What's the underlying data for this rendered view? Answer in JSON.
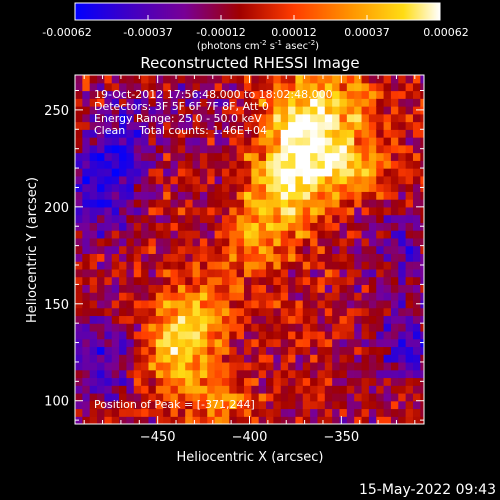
{
  "colorbar": {
    "ticks": [
      "-0.00062",
      "-0.00037",
      "-0.00012",
      "0.00012",
      "0.00037",
      "0.00062"
    ],
    "unit_prefix": "(photons cm",
    "unit_exp1": "-2",
    "unit_mid": " s",
    "unit_exp2": "-1",
    "unit_mid2": " asec",
    "unit_exp3": "-2",
    "unit_suffix": ")"
  },
  "annotations": {
    "line1": "19-Oct-2012 17:56:48.000 to 18:02:48.000",
    "line2": "Detectors: 3F 5F 6F 7F 8F, Att 0",
    "line3": "Energy Range: 25.0 - 50.0 keV",
    "line4": "Clean    Total counts: 1.46E+04",
    "peak": "Position of Peak = [-371,244]"
  },
  "footer": {
    "date": "15-May-2022 09:43"
  },
  "chart_data": {
    "type": "heatmap",
    "title": "Reconstructed RHESSI Image",
    "xlabel": "Heliocentric X (arcsec)",
    "ylabel": "Heliocentric Y (arcsec)",
    "xlim": [
      -495,
      -305
    ],
    "ylim": [
      88,
      268
    ],
    "xticks": [
      -450,
      -400,
      -350
    ],
    "yticks": [
      100,
      150,
      200,
      250
    ],
    "color_range": [
      -0.00062,
      0.00062
    ],
    "peak_position": [
      -371,
      244
    ],
    "pixel_size": 4,
    "colormap": [
      "#0000ff",
      "#3c00c8",
      "#780096",
      "#a00000",
      "#ff3c00",
      "#ff9600",
      "#ffdc14",
      "#ffffff"
    ],
    "sources": [
      {
        "x": -371,
        "y": 244,
        "flux": 0.00062,
        "sx": 14,
        "sy": 16
      },
      {
        "x": -360,
        "y": 222,
        "flux": 0.00048,
        "sx": 16,
        "sy": 14
      },
      {
        "x": -385,
        "y": 205,
        "flux": 0.00042,
        "sx": 14,
        "sy": 16
      },
      {
        "x": -398,
        "y": 180,
        "flux": 0.0002,
        "sx": 16,
        "sy": 12
      },
      {
        "x": -440,
        "y": 128,
        "flux": 0.0005,
        "sx": 13,
        "sy": 14
      },
      {
        "x": -426,
        "y": 148,
        "flux": 0.0003,
        "sx": 14,
        "sy": 12
      },
      {
        "x": -418,
        "y": 102,
        "flux": 0.00028,
        "sx": 14,
        "sy": 12
      },
      {
        "x": -345,
        "y": 255,
        "flux": 0.0003,
        "sx": 11,
        "sy": 12
      },
      {
        "x": -332,
        "y": 220,
        "flux": 0.0002,
        "sx": 12,
        "sy": 12
      },
      {
        "x": -480,
        "y": 210,
        "flux": -0.0004,
        "sx": 14,
        "sy": 18
      },
      {
        "x": -468,
        "y": 240,
        "flux": -0.00025,
        "sx": 12,
        "sy": 14
      },
      {
        "x": -480,
        "y": 122,
        "flux": -0.00035,
        "sx": 12,
        "sy": 16
      },
      {
        "x": -315,
        "y": 130,
        "flux": -0.00035,
        "sx": 12,
        "sy": 16
      },
      {
        "x": -320,
        "y": 180,
        "flux": -0.00025,
        "sx": 12,
        "sy": 14
      },
      {
        "x": -430,
        "y": 250,
        "flux": -0.00015,
        "sx": 14,
        "sy": 12
      }
    ]
  }
}
